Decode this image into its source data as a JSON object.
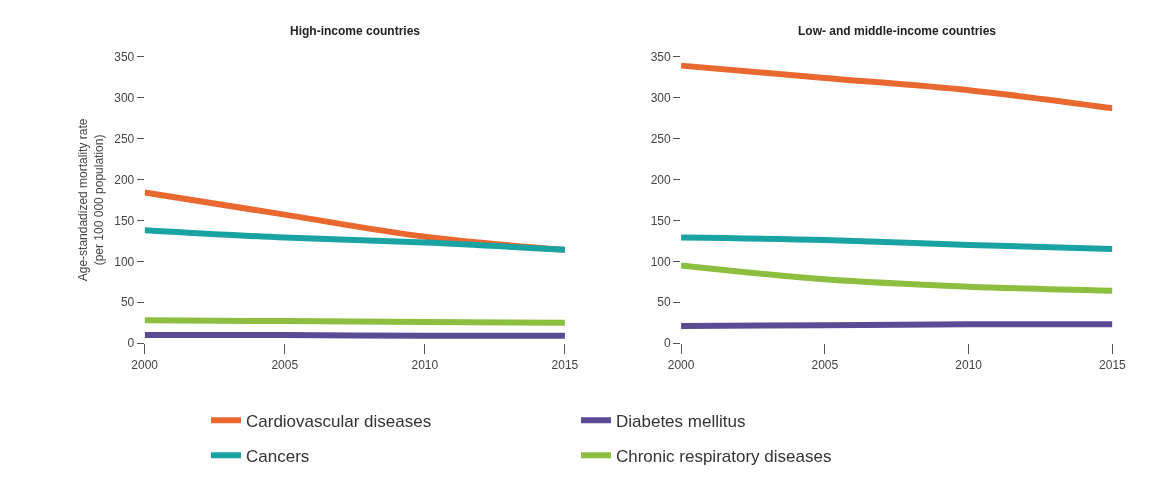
{
  "chart_data": [
    {
      "type": "line",
      "title": "High-income countries",
      "ylabel": "Age-standadized mortality rate\n(per 100 000 population)",
      "x": [
        2000,
        2005,
        2010,
        2015
      ],
      "xlim": [
        2000,
        2015
      ],
      "xticks": [
        2000,
        2005,
        2010,
        2015
      ],
      "ylim": [
        0,
        350
      ],
      "yticks": [
        0,
        50,
        100,
        150,
        200,
        250,
        300,
        350
      ],
      "legend": "bottom",
      "marker": "none",
      "line_style": "solid",
      "series": [
        {
          "name": "Cardiovascular diseases",
          "color": "#e8682f",
          "values": [
            184,
            157,
            130,
            114
          ]
        },
        {
          "name": "Diabetes mellitus",
          "color": "#5b4a94",
          "values": [
            10,
            10,
            9,
            9
          ]
        },
        {
          "name": "Cancers",
          "color": "#1aa3a3",
          "values": [
            138,
            129,
            123,
            114
          ]
        },
        {
          "name": "Chronic respiratory diseases",
          "color": "#8cbf3f",
          "values": [
            28,
            27,
            26,
            25
          ]
        }
      ]
    },
    {
      "type": "line",
      "title": "Low- and middle-income countries",
      "x": [
        2000,
        2005,
        2010,
        2015
      ],
      "xlim": [
        2000,
        2015
      ],
      "xticks": [
        2000,
        2005,
        2010,
        2015
      ],
      "ylim": [
        0,
        350
      ],
      "yticks": [
        0,
        50,
        100,
        150,
        200,
        250,
        300,
        350
      ],
      "legend": "bottom",
      "marker": "none",
      "line_style": "solid",
      "series": [
        {
          "name": "Cardiovascular diseases",
          "color": "#e8682f",
          "values": [
            339,
            324,
            309,
            287
          ]
        },
        {
          "name": "Diabetes mellitus",
          "color": "#5b4a94",
          "values": [
            21,
            22,
            23,
            23
          ]
        },
        {
          "name": "Cancers",
          "color": "#1aa3a3",
          "values": [
            129,
            126,
            120,
            115
          ]
        },
        {
          "name": "Chronic respiratory diseases",
          "color": "#8cbf3f",
          "values": [
            95,
            78,
            69,
            64
          ]
        }
      ]
    }
  ]
}
